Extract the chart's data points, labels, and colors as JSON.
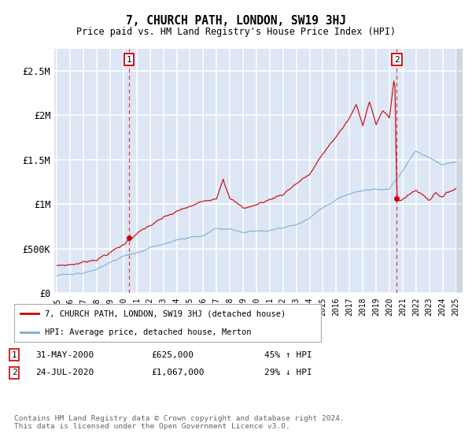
{
  "title": "7, CHURCH PATH, LONDON, SW19 3HJ",
  "subtitle": "Price paid vs. HM Land Registry's House Price Index (HPI)",
  "legend_line1": "7, CHURCH PATH, LONDON, SW19 3HJ (detached house)",
  "legend_line2": "HPI: Average price, detached house, Merton",
  "annotation1_label": "1",
  "annotation1_date": "31-MAY-2000",
  "annotation1_price": "£625,000",
  "annotation1_pct": "45% ↑ HPI",
  "annotation1_year": 2000.42,
  "annotation1_value": 625000,
  "annotation2_label": "2",
  "annotation2_date": "24-JUL-2020",
  "annotation2_price": "£1,067,000",
  "annotation2_pct": "29% ↓ HPI",
  "annotation2_year": 2020.56,
  "annotation2_value": 1067000,
  "annotation2_spike": 2500000,
  "footer": "Contains HM Land Registry data © Crown copyright and database right 2024.\nThis data is licensed under the Open Government Licence v3.0.",
  "ylim": [
    0,
    2750000
  ],
  "yticks": [
    0,
    500000,
    1000000,
    1500000,
    2000000,
    2500000
  ],
  "ytick_labels": [
    "£0",
    "£500K",
    "£1M",
    "£1.5M",
    "£2M",
    "£2.5M"
  ],
  "background_color": "#dce6f5",
  "red_color": "#cc0000",
  "blue_color": "#7aadd4",
  "grid_color": "#ffffff",
  "xmin": 1994.8,
  "xmax": 2025.5
}
